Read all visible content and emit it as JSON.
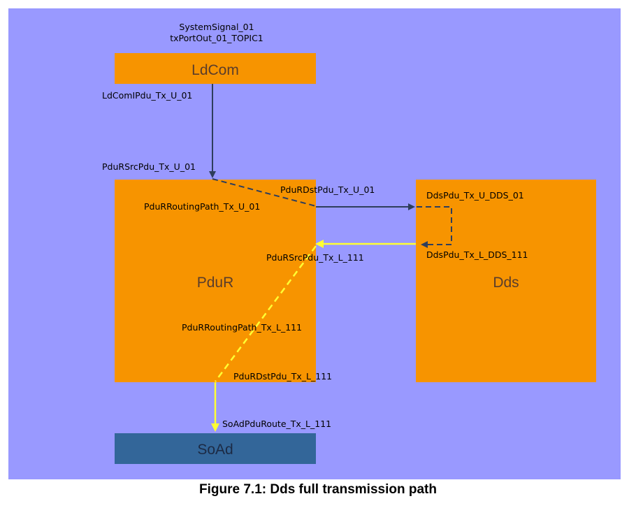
{
  "colors": {
    "canvas": "#9999ff",
    "module": "#f79400",
    "soad": "#336699",
    "arrow": "#2e3e5c",
    "yellow_path": "#ffff33"
  },
  "modules": {
    "ldcom": "LdCom",
    "pdur": "PduR",
    "dds": "Dds",
    "soad": "SoAd"
  },
  "labels": {
    "system_signal": "SystemSignal_01",
    "tx_port": "txPortOut_01_TOPIC1",
    "ldcom_ipdu": "LdComIPdu_Tx_U_01",
    "pdur_src_u": "PduRSrcPdu_Tx_U_01",
    "pdur_dst_u": "PduRDstPdu_Tx_U_01",
    "pdur_routing_u": "PduRRoutingPath_Tx_U_01",
    "dds_pdu_u": "DdsPdu_Tx_U_DDS_01",
    "dds_pdu_l": "DdsPdu_Tx_L_DDS_111",
    "pdur_src_l": "PduRSrcPdu_Tx_L_111",
    "pdur_routing_l": "PduRRoutingPath_Tx_L_111",
    "pdur_dst_l": "PduRDstPdu_Tx_L_111",
    "soad_route": "SoAdPduRoute_Tx_L_111"
  },
  "caption": "Figure 7.1: Dds full transmission path"
}
